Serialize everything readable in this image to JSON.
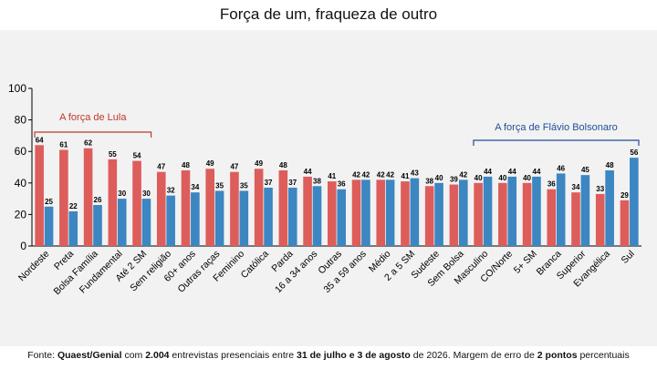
{
  "page": {
    "title": "Força de um, fraqueza de outro"
  },
  "footer": {
    "p1": "Fonte: ",
    "b1": "Quaest/Genial",
    "p2": " com ",
    "b2": "2.004",
    "p3": " entrevistas presenciais entre ",
    "b3": "31 de julho e 3 de agosto",
    "p4": " de 2026. Margem de erro de ",
    "b4": "2 pontos",
    "p5": " percentuais"
  },
  "colors": {
    "series_a": "#dd5d5b",
    "series_b": "#3c86c2",
    "bracket_left": "#c0392b",
    "bracket_right": "#1f4e9a"
  },
  "chart_data": {
    "type": "bar",
    "title": "Força de um, fraqueza de outro",
    "xlabel": "",
    "ylabel": "",
    "ylim": [
      0,
      100
    ],
    "yticks": [
      0,
      20,
      40,
      60,
      80,
      100
    ],
    "grid": false,
    "categories": [
      "Nordeste",
      "Preta",
      "Bolsa Família",
      "Fundamental",
      "Até 2 SM",
      "Sem religião",
      "60+ anos",
      "Outras raças",
      "Feminino",
      "Católica",
      "Parda",
      "16 a 34 anos",
      "Outras",
      "35 a 59 anos",
      "Médio",
      "2 a 5 SM",
      "Sudeste",
      "Sem Bolsa",
      "Masculino",
      "CO/Norte",
      "5+ SM",
      "Branca",
      "Superior",
      "Evangélica",
      "Sul"
    ],
    "series": [
      {
        "values": [
          64,
          61,
          62,
          55,
          54,
          47,
          48,
          49,
          47,
          49,
          48,
          44,
          41,
          42,
          42,
          41,
          38,
          39,
          40,
          40,
          40,
          36,
          34,
          33,
          29
        ]
      },
      {
        "values": [
          25,
          22,
          26,
          30,
          30,
          32,
          34,
          35,
          35,
          37,
          37,
          38,
          36,
          42,
          42,
          43,
          40,
          42,
          44,
          44,
          44,
          46,
          45,
          48,
          56
        ]
      }
    ],
    "annotations": [
      {
        "text": "A força de Lula",
        "span": [
          "Nordeste",
          "Até 2 SM"
        ]
      },
      {
        "text": "A força de Flávio Bolsonaro",
        "span": [
          "Masculino",
          "Sul"
        ]
      }
    ]
  }
}
